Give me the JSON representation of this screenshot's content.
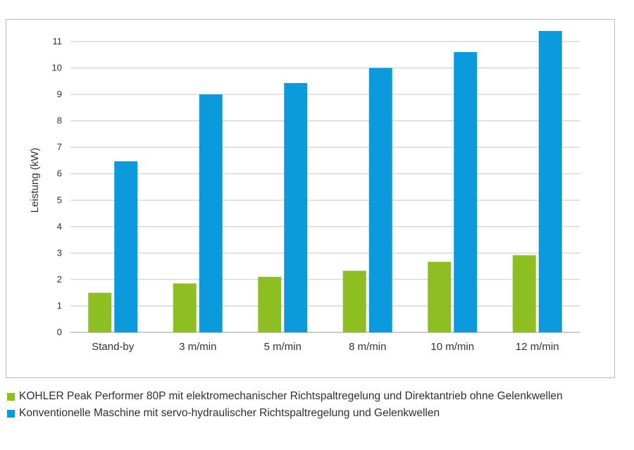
{
  "chart_data": {
    "type": "bar",
    "categories": [
      "Stand-by",
      "3 m/min",
      "5 m/min",
      "8 m/min",
      "10 m/min",
      "12 m/min"
    ],
    "series": [
      {
        "name": "KOHLER Peak Performer 80P mit elektromechanischer Richtspaltregelung und Direktantrieb ohne Gelenkwellen",
        "values": [
          1.5,
          1.85,
          2.1,
          2.33,
          2.67,
          2.92
        ],
        "color": "#8dbe22"
      },
      {
        "name": "Konventionelle Maschine mit servo-hydraulischer Richtspaltregelung und Gelenkwellen",
        "values": [
          6.47,
          9.0,
          9.43,
          10.0,
          10.6,
          11.4
        ],
        "color": "#0b9bdc"
      }
    ],
    "yticks": [
      0,
      1,
      2,
      3,
      4,
      5,
      6,
      7,
      8,
      9,
      10,
      11
    ],
    "title": "",
    "xlabel": "",
    "ylabel": "Leistung (kW)",
    "ylim": [
      0,
      11.8
    ],
    "grid": true,
    "legend_position": "bottom"
  }
}
